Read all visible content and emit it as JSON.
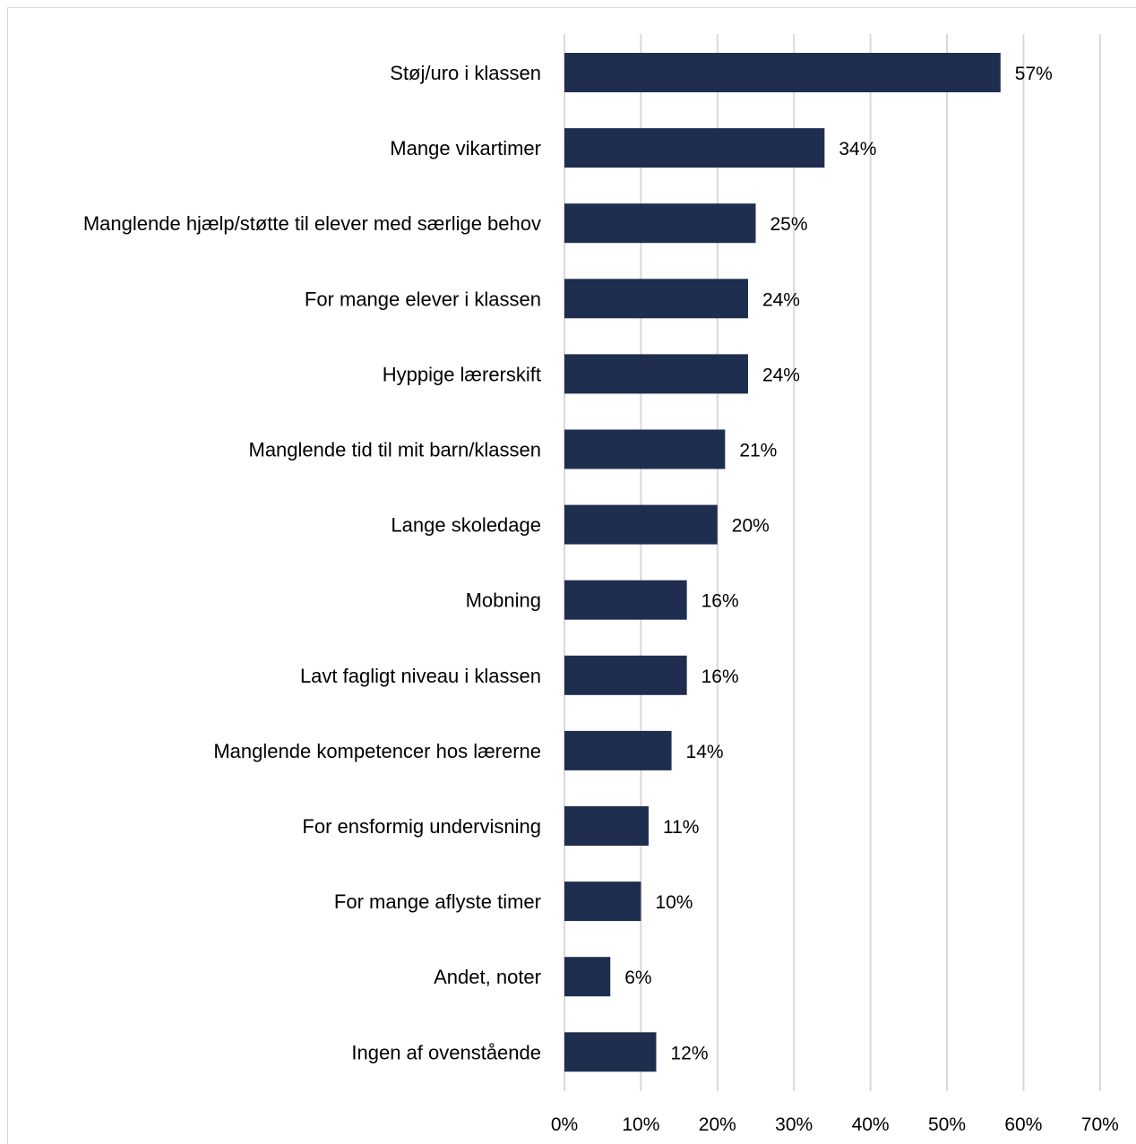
{
  "chart_data": {
    "type": "bar",
    "orientation": "horizontal",
    "categories": [
      "Støj/uro i klassen",
      "Mange vikartimer",
      "Manglende hjælp/støtte til elever med særlige behov",
      "For mange elever i klassen",
      "Hyppige lærerskift",
      "Manglende tid til mit barn/klassen",
      "Lange skoledage",
      "Mobning",
      "Lavt fagligt niveau i klassen",
      "Manglende kompetencer hos lærerne",
      "For ensformig undervisning",
      "For mange aflyste timer",
      "Andet, noter",
      "Ingen af ovenstående"
    ],
    "values": [
      57,
      34,
      25,
      24,
      24,
      21,
      20,
      16,
      16,
      14,
      11,
      10,
      6,
      12
    ],
    "value_labels": [
      "57%",
      "34%",
      "25%",
      "24%",
      "24%",
      "21%",
      "20%",
      "16%",
      "16%",
      "14%",
      "11%",
      "10%",
      "6%",
      "12%"
    ],
    "xlim": [
      0,
      70
    ],
    "ticks": [
      "0%",
      "10%",
      "20%",
      "30%",
      "40%",
      "50%",
      "60%",
      "70%"
    ],
    "tick_values": [
      0,
      10,
      20,
      30,
      40,
      50,
      60,
      70
    ],
    "grid": true,
    "bar_color": "#1f2d4f",
    "grid_color": "#d9d9d9"
  }
}
